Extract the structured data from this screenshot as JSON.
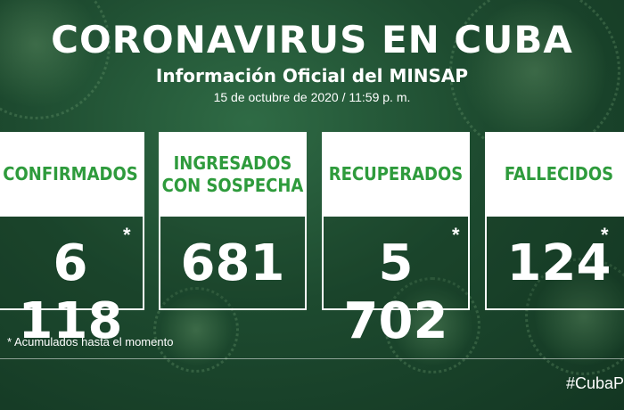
{
  "header": {
    "title": "CORONAVIRUS EN CUBA",
    "subtitle": "Información Oficial del MINSAP",
    "date": "15 de octubre de 2020 / 11:59 p. m."
  },
  "cards": [
    {
      "label": "CONFIRMADOS",
      "value": "6 118",
      "asterisk": "*"
    },
    {
      "label": "INGRESADOS\nCON SOSPECHA",
      "value": "681",
      "asterisk": ""
    },
    {
      "label": "RECUPERADOS",
      "value": "5 702",
      "asterisk": "*"
    },
    {
      "label": "FALLECIDOS",
      "value": "124",
      "asterisk": "*"
    }
  ],
  "footnote": "* Acumulados hasta el momento",
  "hashtag": "#CubaP",
  "colors": {
    "accent": "#2e9b3c",
    "background": "#1d4a2f"
  }
}
